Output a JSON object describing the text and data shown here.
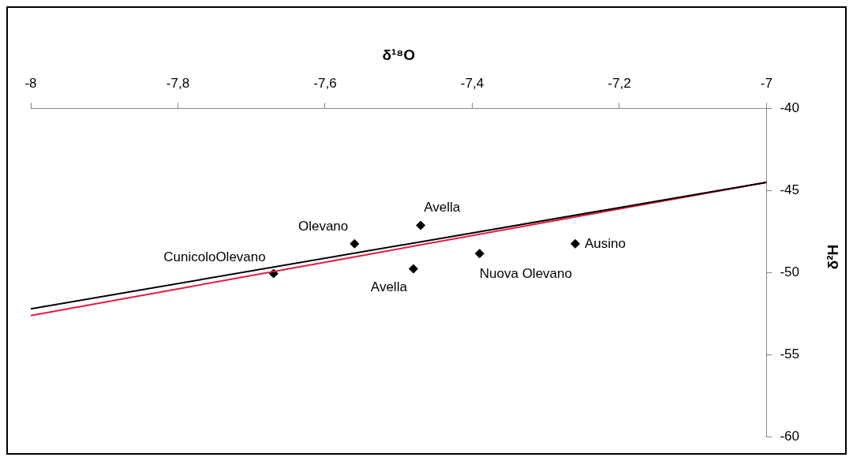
{
  "chart_data": {
    "type": "scatter",
    "xlabel": "δ¹⁸O",
    "ylabel": "δ²H",
    "xlim": [
      -8,
      -7
    ],
    "xticks": [
      -8,
      {
        "value": -7.8,
        "label": "-7,8"
      },
      {
        "value": -7.6,
        "label": "-7,6"
      },
      {
        "value": -7.4,
        "label": "-7,4"
      },
      {
        "value": -7.2,
        "label": "-7,2"
      },
      -7
    ],
    "ylim": [
      -60,
      -40
    ],
    "yticks": [
      -60,
      -55,
      -50,
      -45,
      -40
    ],
    "grid": false,
    "legend": false,
    "series": [
      {
        "type": "line",
        "color": "#000000",
        "x": [
          -8,
          -7
        ],
        "values": [
          -52.2,
          -44.5
        ],
        "marker": "none"
      },
      {
        "type": "line",
        "color": "#e8173a",
        "x": [
          -8,
          -7
        ],
        "values": [
          -52.6,
          -44.5
        ],
        "marker": "none"
      },
      {
        "type": "scatter",
        "color": "#000000",
        "marker": "diamond",
        "x": [
          -7.67,
          -7.56,
          -7.47,
          -7.48,
          -7.39,
          -7.26
        ],
        "values": [
          -50.05,
          -48.24,
          -47.12,
          -49.76,
          -48.83,
          -48.24
        ]
      }
    ],
    "annotations": [
      {
        "text": "CunicoloOlevano",
        "x": -7.67,
        "y": -50.05
      },
      {
        "text": "Olevano",
        "x": -7.56,
        "y": -48.24
      },
      {
        "text": "Avella",
        "x": -7.47,
        "y": -47.12
      },
      {
        "text": "Avella",
        "x": -7.48,
        "y": -49.76
      },
      {
        "text": "Nuova Olevano",
        "x": -7.39,
        "y": -48.83
      },
      {
        "text": "Ausino",
        "x": -7.26,
        "y": -48.24
      }
    ]
  }
}
